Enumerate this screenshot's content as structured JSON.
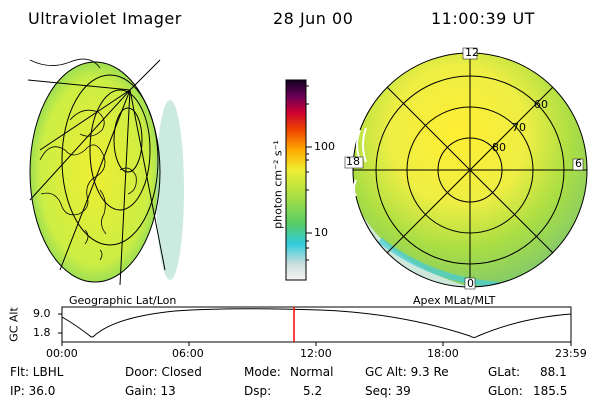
{
  "header": {
    "instrument": "Ultraviolet Imager",
    "date": "28 Jun 00",
    "time": "11:00:39 UT"
  },
  "colorbar": {
    "label": "photon cm⁻² s⁻¹",
    "ticks": [
      "100",
      "10"
    ],
    "scale": "log"
  },
  "left_panel": {
    "caption": "Geographic Lat/Lon"
  },
  "right_panel": {
    "caption": "Apex MLat/MLT",
    "mlt_labels": [
      "12",
      "6",
      "18",
      "0"
    ],
    "lat_labels": [
      "60",
      "70",
      "80"
    ]
  },
  "orbit": {
    "ylabel": "GC Alt",
    "ytick_labels": [
      "9.0",
      "1.8"
    ],
    "xtick_labels": [
      "00:00",
      "06:00",
      "12:00",
      "18:00",
      "23:59"
    ],
    "current_marker_color": "#ff0000"
  },
  "info": {
    "flt": "Flt: LBHL",
    "ip": "IP: 36.0",
    "door": "Door: Closed",
    "gain": "Gain: 13",
    "mode_label": "Mode:",
    "mode_value": "Normal",
    "dsp_label": "Dsp:",
    "dsp_value": "5.2",
    "gc_alt": "GC Alt: 9.3 Re",
    "seq": "Seq: 39",
    "glat": "GLat:",
    "glat_value": "88.1",
    "glon": "GLon:",
    "glon_value": "185.5"
  },
  "colors": {
    "background": "#ffffff",
    "low": "#d8ecd8",
    "mid": "#ccee44",
    "high": "#ffee33",
    "cyan": "#44ccdd",
    "orange": "#ff9900",
    "red": "#cc0000",
    "dark": "#110033"
  }
}
